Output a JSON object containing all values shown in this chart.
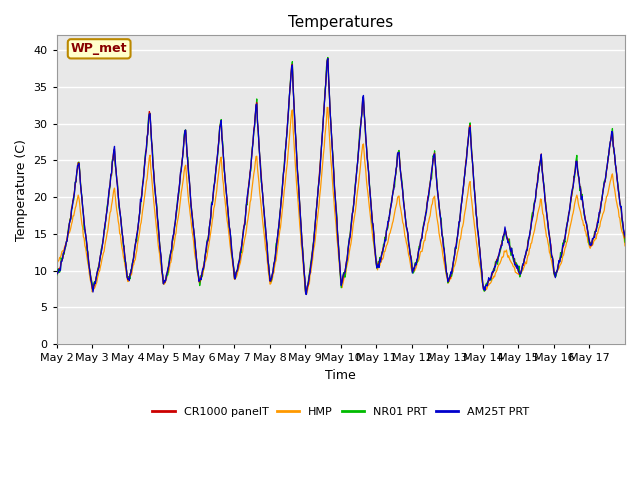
{
  "title": "Temperatures",
  "xlabel": "Time",
  "ylabel": "Temperature (C)",
  "ylim": [
    0,
    42
  ],
  "yticks": [
    0,
    5,
    10,
    15,
    20,
    25,
    30,
    35,
    40
  ],
  "plot_bg": "#e8e8e8",
  "fig_bg": "#ffffff",
  "grid_color": "#ffffff",
  "series_colors": [
    "#cc0000",
    "#ff9900",
    "#00bb00",
    "#0000cc"
  ],
  "series_names": [
    "CR1000 panelT",
    "HMP",
    "NR01 PRT",
    "AM25T PRT"
  ],
  "annotation_text": "WP_met",
  "annotation_color": "#880000",
  "annotation_bg": "#ffffcc",
  "annotation_border": "#bb8800",
  "x_tick_labels": [
    "May 2",
    "May 3",
    "May 4",
    "May 5",
    "May 6",
    "May 7",
    "May 8",
    "May 9",
    "May 10",
    "May 11",
    "May 12",
    "May 13",
    "May 14",
    "May 15",
    "May 16",
    "May 17"
  ]
}
